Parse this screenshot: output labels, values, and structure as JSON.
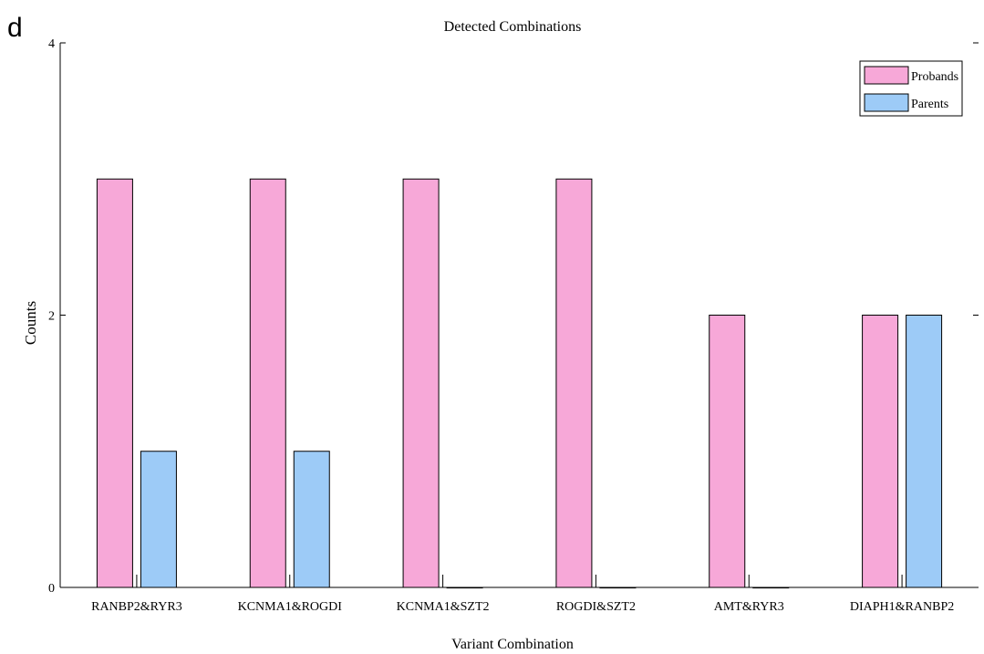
{
  "panel_letter": "d",
  "chart_data": {
    "type": "bar",
    "title": "Detected Combinations",
    "xlabel": "Variant Combination",
    "ylabel": "Counts",
    "categories": [
      "RANBP2&RYR3",
      "KCNMA1&ROGDI",
      "KCNMA1&SZT2",
      "ROGDI&SZT2",
      "AMT&RYR3",
      "DIAPH1&RANBP2"
    ],
    "series": [
      {
        "name": "Probands",
        "values": [
          3,
          3,
          3,
          3,
          2,
          2
        ],
        "color": "#f7a8d8"
      },
      {
        "name": "Parents",
        "values": [
          1,
          1,
          0,
          0,
          0,
          2
        ],
        "color": "#9dcbf7"
      }
    ],
    "ylim": [
      0,
      4
    ],
    "yticks": [
      "0",
      "2",
      "4"
    ],
    "grid": false,
    "legend_position": "top-right"
  }
}
